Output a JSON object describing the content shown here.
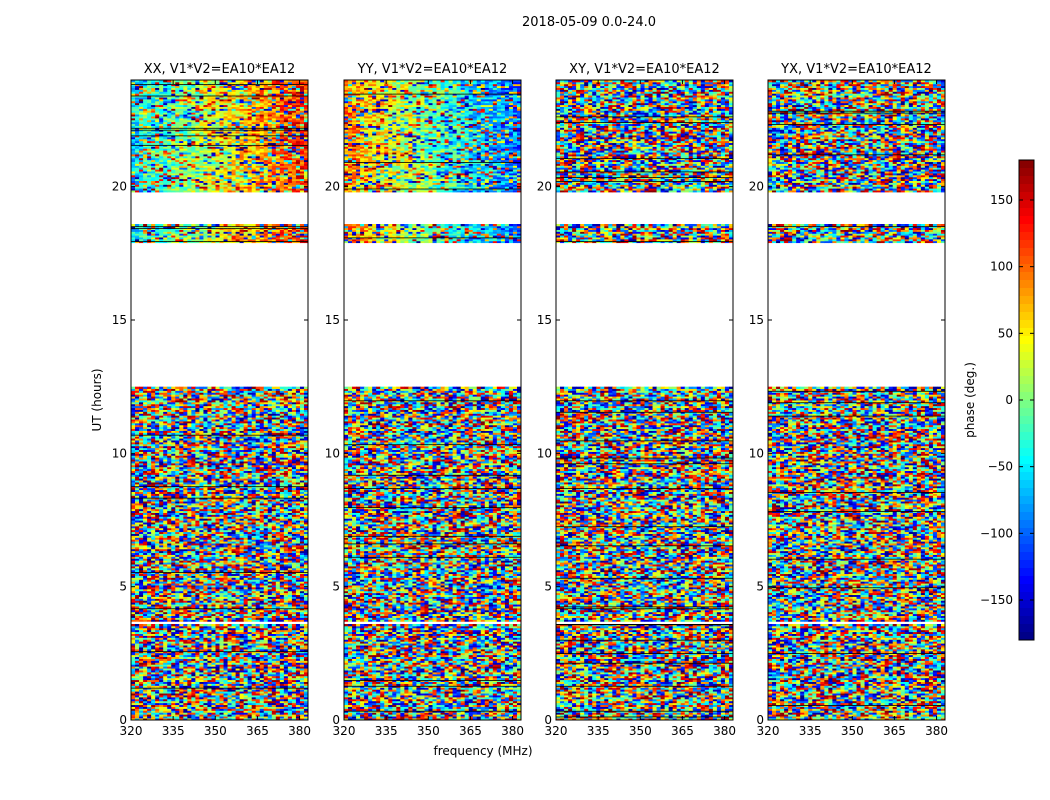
{
  "chart_data": {
    "type": "heatmap",
    "suptitle": "2018-05-09 0.0-24.0",
    "xlabel": "frequency (MHz)",
    "ylabel": "UT (hours)",
    "xlim": [
      320,
      383
    ],
    "ylim": [
      0,
      24
    ],
    "xticks": [
      320,
      335,
      350,
      365,
      380
    ],
    "yticks": [
      0,
      5,
      10,
      15,
      20
    ],
    "colorbar": {
      "label": "phase (deg.)",
      "range": [
        -180,
        180
      ],
      "ticks": [
        -150,
        -100,
        -50,
        0,
        50,
        100,
        150
      ],
      "tick_labels": [
        "−150",
        "−100",
        "−50",
        "0",
        "50",
        "100",
        "150"
      ],
      "colormap": "jet"
    },
    "panels": [
      {
        "title": "XX, V1*V2=EA10*EA12",
        "pol": "XX",
        "gradient_strength": 1.0
      },
      {
        "title": "YY, V1*V2=EA10*EA12",
        "pol": "YY",
        "gradient_strength": -1.0
      },
      {
        "title": "XY, V1*V2=EA10*EA12",
        "pol": "XY",
        "gradient_strength": 0.0
      },
      {
        "title": "YX, V1*V2=EA10*EA12",
        "pol": "YX",
        "gradient_strength": 0.0
      }
    ],
    "data_blocks_ut": [
      [
        0.0,
        3.6
      ],
      [
        3.7,
        12.5
      ],
      [
        17.9,
        18.6
      ],
      [
        19.8,
        24.0
      ]
    ],
    "flagged_gaps_ut": [
      [
        3.6,
        3.7
      ],
      [
        12.5,
        17.9
      ],
      [
        18.6,
        19.8
      ]
    ]
  }
}
